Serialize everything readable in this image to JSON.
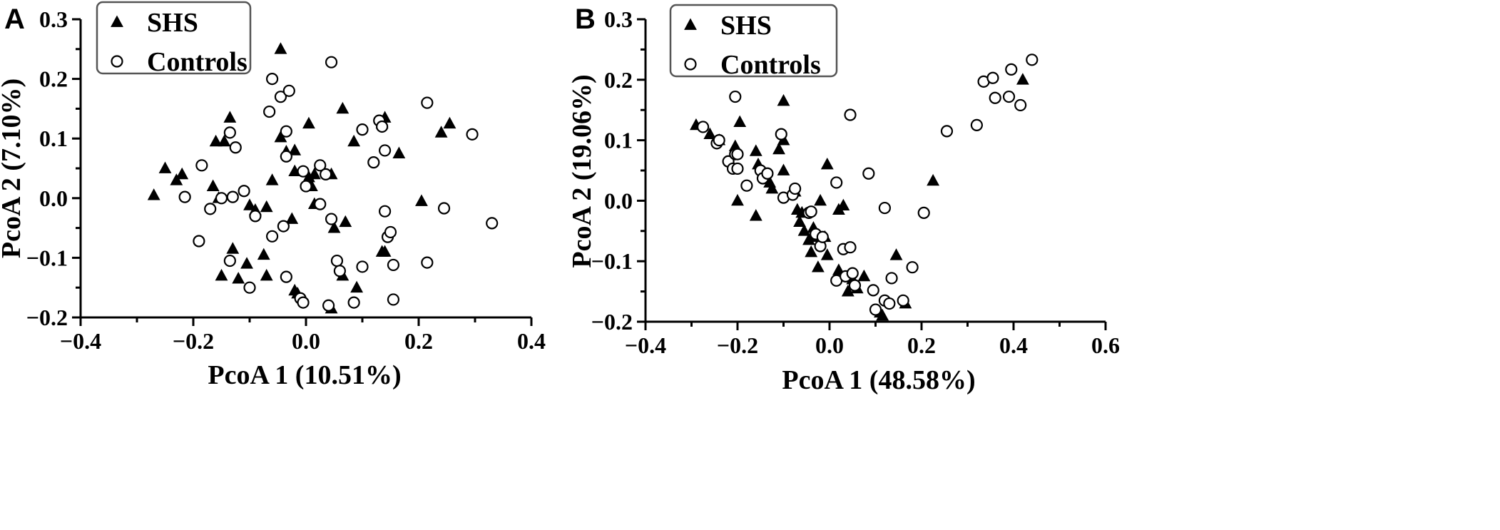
{
  "chart_data": [
    {
      "panel": "A",
      "type": "scatter",
      "xlabel": "PcoA 1 (10.51%)",
      "ylabel": "PcoA 2 (7.10%)",
      "xlim": [
        -0.4,
        0.4
      ],
      "ylim": [
        -0.2,
        0.3
      ],
      "xticks": [
        "−0.4",
        "−0.2",
        "0.0",
        "0.2",
        "0.4"
      ],
      "yticks": [
        "−0.2",
        "−0.1",
        "0.0",
        "0.1",
        "0.2",
        "0.3"
      ],
      "legend": {
        "placement": "top-left",
        "entries": [
          "SHS",
          "Controls"
        ]
      },
      "grid": false,
      "series": [
        {
          "name": "SHS",
          "marker": "triangle-filled",
          "points": [
            [
              -0.27,
              0.005
            ],
            [
              -0.25,
              0.05
            ],
            [
              -0.23,
              0.03
            ],
            [
              -0.22,
              0.04
            ],
            [
              -0.165,
              0.02
            ],
            [
              -0.16,
              0.095
            ],
            [
              -0.145,
              0.095
            ],
            [
              -0.135,
              0.135
            ],
            [
              -0.155,
              0.0
            ],
            [
              -0.13,
              -0.085
            ],
            [
              -0.15,
              -0.13
            ],
            [
              -0.12,
              -0.135
            ],
            [
              -0.105,
              -0.11
            ],
            [
              -0.1,
              -0.012
            ],
            [
              -0.09,
              -0.02
            ],
            [
              -0.075,
              -0.095
            ],
            [
              -0.07,
              -0.13
            ],
            [
              -0.07,
              -0.015
            ],
            [
              -0.06,
              0.03
            ],
            [
              -0.045,
              0.25
            ],
            [
              -0.045,
              0.102
            ],
            [
              -0.035,
              0.078
            ],
            [
              -0.025,
              -0.035
            ],
            [
              -0.02,
              -0.155
            ],
            [
              -0.015,
              -0.16
            ],
            [
              -0.02,
              0.08
            ],
            [
              -0.02,
              0.045
            ],
            [
              0.005,
              0.125
            ],
            [
              0.005,
              0.035
            ],
            [
              0.01,
              0.02
            ],
            [
              0.015,
              0.04
            ],
            [
              0.015,
              -0.01
            ],
            [
              0.045,
              0.04
            ],
            [
              0.045,
              -0.185
            ],
            [
              0.065,
              0.15
            ],
            [
              0.065,
              -0.13
            ],
            [
              0.07,
              -0.04
            ],
            [
              0.05,
              -0.05
            ],
            [
              0.085,
              0.095
            ],
            [
              0.09,
              -0.15
            ],
            [
              0.135,
              0.125
            ],
            [
              0.14,
              0.135
            ],
            [
              0.135,
              -0.09
            ],
            [
              0.14,
              -0.09
            ],
            [
              0.165,
              0.075
            ],
            [
              0.205,
              -0.005
            ],
            [
              0.24,
              0.11
            ],
            [
              0.255,
              0.125
            ]
          ]
        },
        {
          "name": "Controls",
          "marker": "circle-open",
          "points": [
            [
              -0.215,
              0.002
            ],
            [
              -0.185,
              0.055
            ],
            [
              -0.19,
              -0.072
            ],
            [
              -0.17,
              -0.018
            ],
            [
              -0.15,
              0.0
            ],
            [
              -0.135,
              0.11
            ],
            [
              -0.13,
              0.002
            ],
            [
              -0.125,
              0.085
            ],
            [
              -0.11,
              0.012
            ],
            [
              -0.135,
              -0.105
            ],
            [
              -0.1,
              -0.15
            ],
            [
              -0.09,
              -0.03
            ],
            [
              -0.065,
              0.145
            ],
            [
              -0.06,
              0.2
            ],
            [
              -0.06,
              -0.064
            ],
            [
              -0.045,
              0.17
            ],
            [
              -0.035,
              0.112
            ],
            [
              -0.035,
              0.07
            ],
            [
              -0.04,
              -0.047
            ],
            [
              -0.035,
              -0.132
            ],
            [
              -0.03,
              0.18
            ],
            [
              -0.01,
              -0.168
            ],
            [
              -0.005,
              -0.175
            ],
            [
              -0.005,
              0.045
            ],
            [
              0.0,
              0.02
            ],
            [
              0.025,
              0.055
            ],
            [
              0.025,
              -0.01
            ],
            [
              0.035,
              0.04
            ],
            [
              0.04,
              -0.18
            ],
            [
              0.045,
              -0.035
            ],
            [
              0.045,
              0.228
            ],
            [
              0.055,
              -0.105
            ],
            [
              0.06,
              -0.122
            ],
            [
              0.085,
              -0.175
            ],
            [
              0.1,
              0.115
            ],
            [
              0.1,
              -0.115
            ],
            [
              0.12,
              0.06
            ],
            [
              0.13,
              0.13
            ],
            [
              0.135,
              0.12
            ],
            [
              0.14,
              0.08
            ],
            [
              0.14,
              -0.022
            ],
            [
              0.145,
              -0.065
            ],
            [
              0.15,
              -0.057
            ],
            [
              0.155,
              -0.112
            ],
            [
              0.155,
              -0.17
            ],
            [
              0.215,
              0.16
            ],
            [
              0.215,
              -0.108
            ],
            [
              0.245,
              -0.017
            ],
            [
              0.295,
              0.107
            ],
            [
              0.33,
              -0.042
            ]
          ]
        }
      ]
    },
    {
      "panel": "B",
      "type": "scatter",
      "xlabel": "PcoA 1 (48.58%)",
      "ylabel": "PcoA 2 (19.06%)",
      "xlim": [
        -0.4,
        0.6
      ],
      "ylim": [
        -0.2,
        0.3
      ],
      "xticks": [
        "−0.4",
        "−0.2",
        "0.0",
        "0.2",
        "0.4",
        "0.6"
      ],
      "yticks": [
        "−0.2",
        "−0.1",
        "0.0",
        "0.1",
        "0.2",
        "0.3"
      ],
      "legend": {
        "placement": "top-left",
        "entries": [
          "SHS",
          "Controls"
        ]
      },
      "grid": false,
      "series": [
        {
          "name": "SHS",
          "marker": "triangle-filled",
          "points": [
            [
              -0.29,
              0.125
            ],
            [
              -0.26,
              0.11
            ],
            [
              -0.24,
              0.1
            ],
            [
              -0.205,
              0.09
            ],
            [
              -0.195,
              0.13
            ],
            [
              -0.2,
              0.0
            ],
            [
              -0.16,
              0.082
            ],
            [
              -0.155,
              0.06
            ],
            [
              -0.16,
              -0.025
            ],
            [
              -0.14,
              0.04
            ],
            [
              -0.13,
              0.03
            ],
            [
              -0.125,
              0.02
            ],
            [
              -0.11,
              0.085
            ],
            [
              -0.1,
              0.1
            ],
            [
              -0.1,
              0.05
            ],
            [
              -0.1,
              0.165
            ],
            [
              -0.075,
              0.015
            ],
            [
              -0.07,
              -0.015
            ],
            [
              -0.065,
              -0.035
            ],
            [
              -0.06,
              -0.02
            ],
            [
              -0.055,
              -0.05
            ],
            [
              -0.045,
              -0.065
            ],
            [
              -0.04,
              -0.085
            ],
            [
              -0.035,
              -0.045
            ],
            [
              -0.03,
              -0.06
            ],
            [
              -0.02,
              0.0
            ],
            [
              -0.01,
              -0.06
            ],
            [
              -0.005,
              0.06
            ],
            [
              -0.005,
              -0.09
            ],
            [
              -0.025,
              -0.11
            ],
            [
              0.02,
              -0.015
            ],
            [
              0.03,
              -0.008
            ],
            [
              0.02,
              -0.115
            ],
            [
              0.04,
              -0.15
            ],
            [
              0.05,
              -0.13
            ],
            [
              0.06,
              -0.145
            ],
            [
              0.075,
              -0.125
            ],
            [
              0.11,
              -0.185
            ],
            [
              0.115,
              -0.19
            ],
            [
              0.145,
              -0.09
            ],
            [
              0.165,
              -0.17
            ],
            [
              0.225,
              0.033
            ],
            [
              0.42,
              0.2
            ]
          ]
        },
        {
          "name": "Controls",
          "marker": "circle-open",
          "points": [
            [
              -0.275,
              0.122
            ],
            [
              -0.245,
              0.095
            ],
            [
              -0.24,
              0.1
            ],
            [
              -0.22,
              0.065
            ],
            [
              -0.21,
              0.053
            ],
            [
              -0.205,
              0.077
            ],
            [
              -0.2,
              0.053
            ],
            [
              -0.2,
              0.077
            ],
            [
              -0.205,
              0.172
            ],
            [
              -0.18,
              0.025
            ],
            [
              -0.15,
              0.05
            ],
            [
              -0.145,
              0.037
            ],
            [
              -0.135,
              0.045
            ],
            [
              -0.105,
              0.11
            ],
            [
              -0.1,
              0.005
            ],
            [
              -0.08,
              0.01
            ],
            [
              -0.075,
              0.02
            ],
            [
              -0.045,
              -0.02
            ],
            [
              -0.04,
              -0.018
            ],
            [
              -0.03,
              -0.055
            ],
            [
              -0.02,
              -0.075
            ],
            [
              -0.015,
              -0.06
            ],
            [
              0.015,
              0.03
            ],
            [
              0.015,
              -0.132
            ],
            [
              0.03,
              -0.08
            ],
            [
              0.035,
              -0.125
            ],
            [
              0.045,
              -0.077
            ],
            [
              0.045,
              0.142
            ],
            [
              0.05,
              -0.12
            ],
            [
              0.055,
              -0.14
            ],
            [
              0.085,
              0.045
            ],
            [
              0.095,
              -0.148
            ],
            [
              0.1,
              -0.18
            ],
            [
              0.12,
              -0.012
            ],
            [
              0.12,
              -0.165
            ],
            [
              0.13,
              -0.17
            ],
            [
              0.135,
              -0.128
            ],
            [
              0.16,
              -0.165
            ],
            [
              0.18,
              -0.11
            ],
            [
              0.205,
              -0.02
            ],
            [
              0.255,
              0.115
            ],
            [
              0.32,
              0.125
            ],
            [
              0.335,
              0.197
            ],
            [
              0.355,
              0.203
            ],
            [
              0.36,
              0.17
            ],
            [
              0.39,
              0.172
            ],
            [
              0.395,
              0.217
            ],
            [
              0.415,
              0.158
            ],
            [
              0.44,
              0.233
            ]
          ]
        }
      ]
    }
  ]
}
